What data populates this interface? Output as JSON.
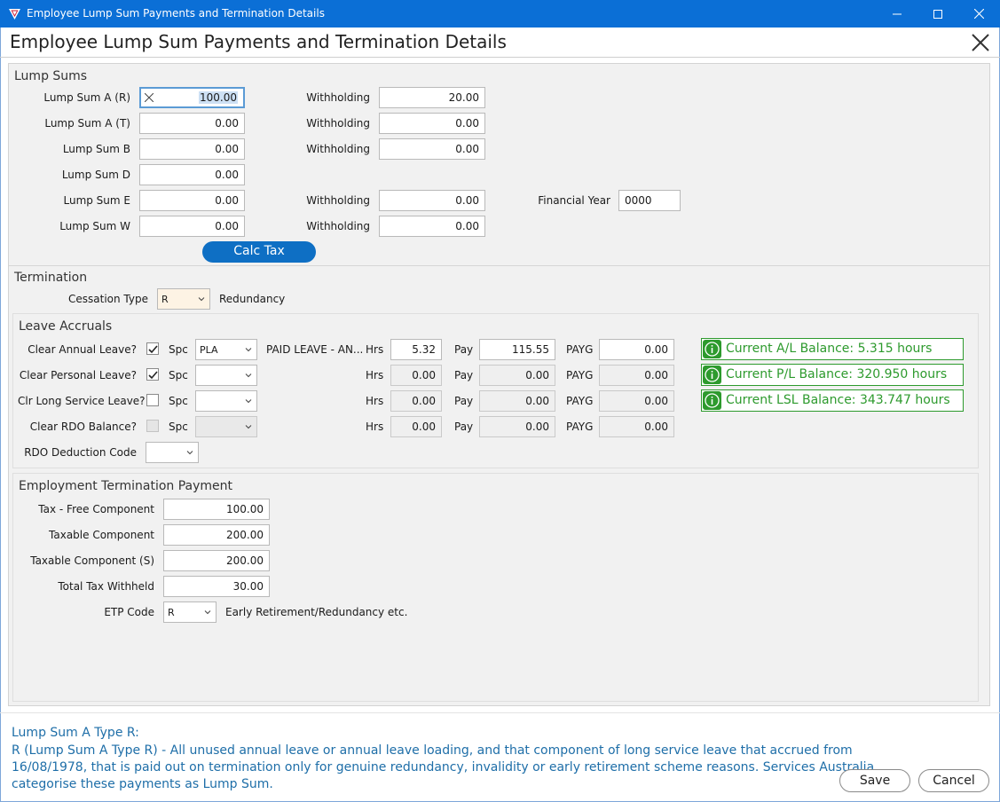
{
  "window": {
    "title": "Employee Lump Sum Payments and Termination Details",
    "heading": "Employee Lump Sum Payments and Termination Details",
    "accent_color": "#0b6fd6"
  },
  "lump_sums": {
    "section_title": "Lump Sums",
    "rows": [
      {
        "label": "Lump Sum A (R)",
        "value": "100.00",
        "withholding_label": "Withholding",
        "withholding": "20.00"
      },
      {
        "label": "Lump Sum A (T)",
        "value": "0.00",
        "withholding_label": "Withholding",
        "withholding": "0.00"
      },
      {
        "label": "Lump Sum B",
        "value": "0.00",
        "withholding_label": "Withholding",
        "withholding": "0.00"
      },
      {
        "label": "Lump Sum D",
        "value": "0.00"
      },
      {
        "label": "Lump Sum E",
        "value": "0.00",
        "withholding_label": "Withholding",
        "withholding": "0.00"
      },
      {
        "label": "Lump Sum W",
        "value": "0.00",
        "withholding_label": "Withholding",
        "withholding": "0.00"
      }
    ],
    "financial_year_label": "Financial Year",
    "financial_year": "0000",
    "calc_tax_label": "Calc Tax"
  },
  "termination": {
    "section_title": "Termination",
    "cessation_label": "Cessation Type",
    "cessation_value": "R",
    "cessation_desc": "Redundancy"
  },
  "leave": {
    "section_title": "Leave Accruals",
    "spc_label": "Spc",
    "hrs_label": "Hrs",
    "pay_label": "Pay",
    "payg_label": "PAYG",
    "rows": [
      {
        "label": "Clear Annual Leave?",
        "checked": true,
        "spc": "PLA",
        "spc_desc": "PAID LEAVE - AN...",
        "hrs": "5.32",
        "pay": "115.55",
        "payg": "0.00"
      },
      {
        "label": "Clear Personal Leave?",
        "checked": true,
        "spc": "",
        "spc_desc": "",
        "hrs": "0.00",
        "pay": "0.00",
        "payg": "0.00"
      },
      {
        "label": "Clr Long Service Leave?",
        "checked": false,
        "spc": "",
        "spc_desc": "",
        "hrs": "0.00",
        "pay": "0.00",
        "payg": "0.00"
      },
      {
        "label": "Clear RDO Balance?",
        "checked": false,
        "spc": "",
        "spc_desc": "",
        "hrs": "0.00",
        "pay": "0.00",
        "payg": "0.00"
      }
    ],
    "balances": [
      "Current A/L Balance: 5.315 hours",
      "Current P/L Balance: 320.950 hours",
      "Current LSL Balance: 343.747 hours"
    ],
    "rdo_label": "RDO Deduction Code",
    "rdo_value": ""
  },
  "etp": {
    "section_title": "Employment Termination Payment",
    "rows": [
      {
        "label": "Tax - Free Component",
        "value": "100.00"
      },
      {
        "label": "Taxable Component",
        "value": "200.00"
      },
      {
        "label": "Taxable Component (S)",
        "value": "200.00"
      },
      {
        "label": "Total Tax Withheld",
        "value": "30.00"
      }
    ],
    "code_label": "ETP Code",
    "code_value": "R",
    "code_desc": "Early Retirement/Redundancy etc."
  },
  "help": {
    "title": "Lump Sum A Type R:",
    "lines": [
      "R (Lump Sum A Type R) - All unused annual leave or annual leave loading, and that component of long service leave that accrued from",
      "16/08/1978, that is paid out on termination only for genuine redundancy, invalidity or early retirement scheme reasons. Services Australia",
      "categorise these payments as Lump Sum."
    ]
  },
  "buttons": {
    "save": "Save",
    "cancel": "Cancel"
  }
}
